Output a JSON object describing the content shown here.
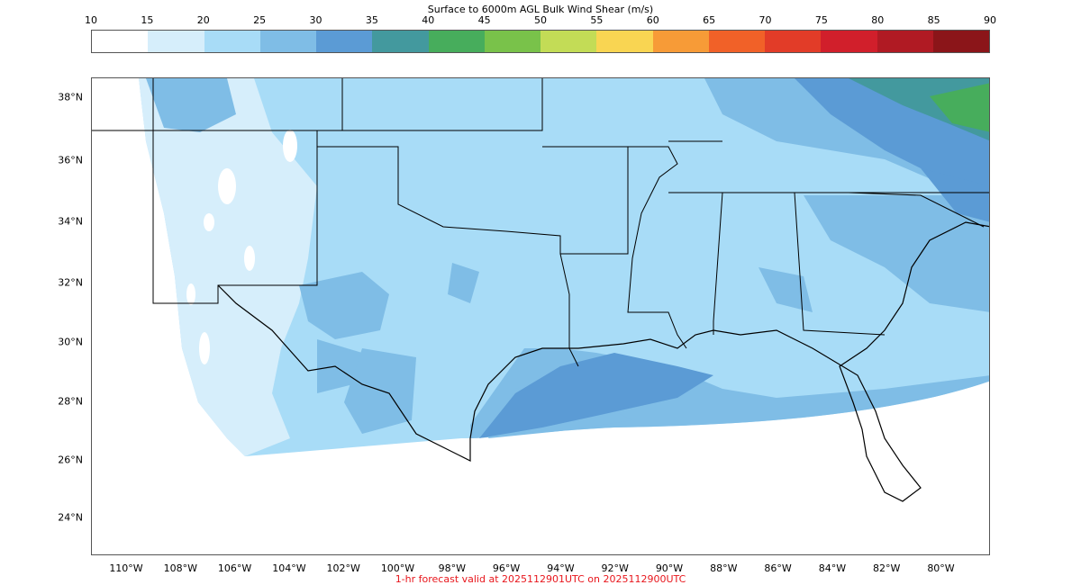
{
  "colorbar": {
    "title": "Surface to 6000m AGL Bulk Wind Shear (m/s)",
    "ticks": [
      "10",
      "15",
      "20",
      "25",
      "30",
      "35",
      "40",
      "45",
      "50",
      "55",
      "60",
      "65",
      "70",
      "75",
      "80",
      "85",
      "90"
    ],
    "colors": [
      "#ffffff",
      "#d6eefb",
      "#a8dcf7",
      "#7fbde6",
      "#5b9bd5",
      "#43999e",
      "#47ad5c",
      "#79c24a",
      "#c3dc56",
      "#f9d552",
      "#f79b37",
      "#f16128",
      "#e23c28",
      "#d11f2b",
      "#b01a23",
      "#8b1519"
    ]
  },
  "map": {
    "lat_labels": [
      "38°N",
      "36°N",
      "34°N",
      "32°N",
      "30°N",
      "28°N",
      "26°N",
      "24°N"
    ],
    "lon_labels": [
      "110°W",
      "108°W",
      "106°W",
      "104°W",
      "102°W",
      "100°W",
      "98°W",
      "96°W",
      "94°W",
      "92°W",
      "90°W",
      "88°W",
      "86°W",
      "84°W",
      "82°W",
      "80°W"
    ]
  },
  "footer": "1-hr forecast valid at 2025112901UTC on 2025112900UTC"
}
